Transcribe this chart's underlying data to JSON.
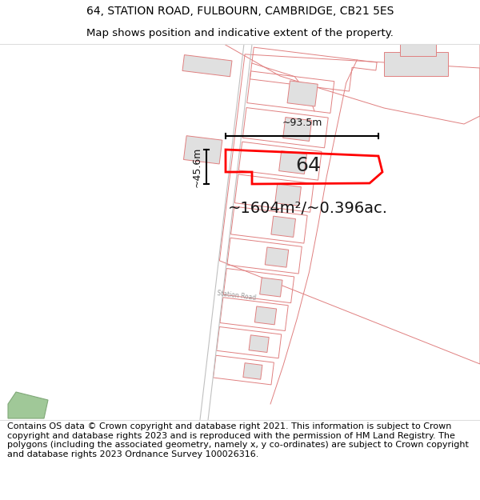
{
  "title_line1": "64, STATION ROAD, FULBOURN, CAMBRIDGE, CB21 5ES",
  "title_line2": "Map shows position and indicative extent of the property.",
  "footer_text": "Contains OS data © Crown copyright and database right 2021. This information is subject to Crown copyright and database rights 2023 and is reproduced with the permission of HM Land Registry. The polygons (including the associated geometry, namely x, y co-ordinates) are subject to Crown copyright and database rights 2023 Ordnance Survey 100026316.",
  "area_label": "~1604m²/~0.396ac.",
  "width_label": "~93.5m",
  "height_label": "~45.6m",
  "plot_number": "64",
  "background_color": "#ffffff",
  "building_fill": "#e0e0e0",
  "building_edge_color": "#e08080",
  "plot_edge_color": "#e08080",
  "road_color": "#cccccc",
  "highlight_color": "#ff0000",
  "title_fontsize": 10,
  "subtitle_fontsize": 9.5,
  "footer_fontsize": 8,
  "area_fontsize": 14,
  "label_fontsize": 9,
  "number_fontsize": 18
}
